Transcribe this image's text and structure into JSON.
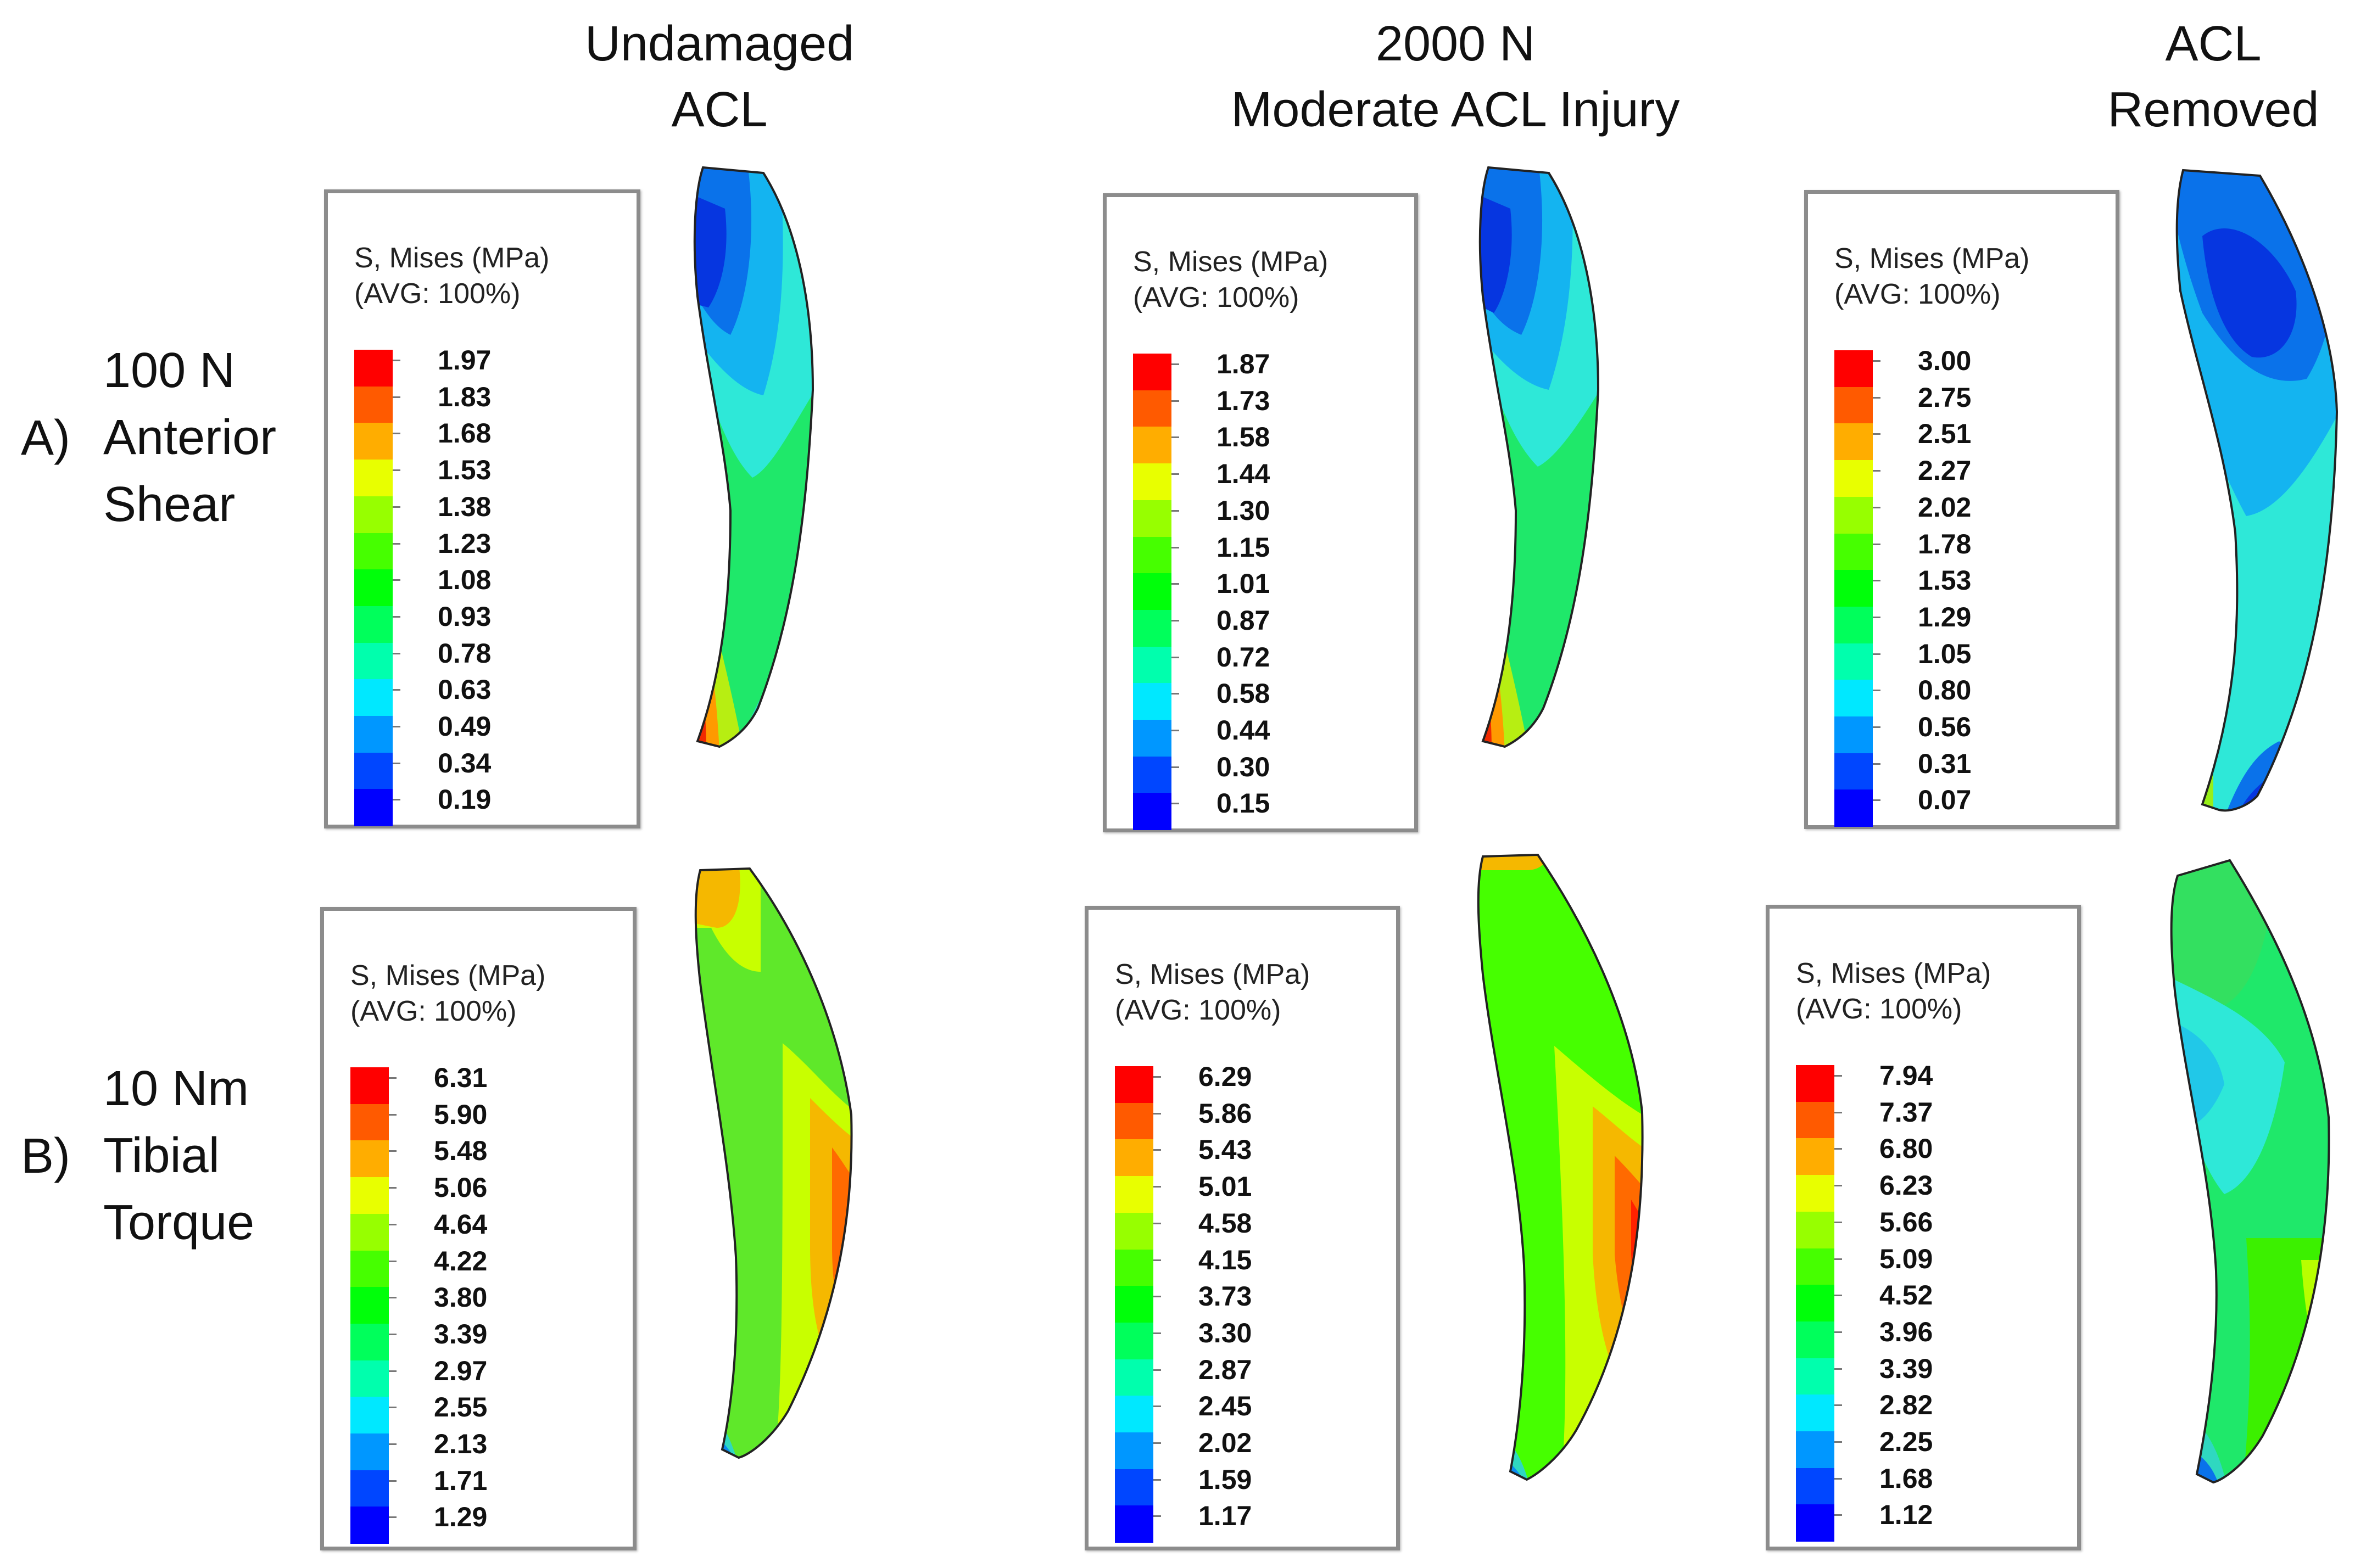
{
  "columns": [
    {
      "line1": "Undamaged",
      "line2": "ACL"
    },
    {
      "line1": "2000 N",
      "line2": "Moderate ACL Injury"
    },
    {
      "line1": "ACL",
      "line2": "Removed"
    }
  ],
  "rows": [
    {
      "letter": "A)",
      "lines": [
        "100 N",
        "Anterior",
        "Shear"
      ]
    },
    {
      "letter": "B)",
      "lines": [
        "10 Nm",
        "Tibial",
        "Torque"
      ]
    }
  ],
  "legend_title_1": "S, Mises (MPa)",
  "legend_title_2": "(AVG: 100%)",
  "legend_colors": [
    "#ff0000",
    "#ff5a00",
    "#ffad00",
    "#e8ff00",
    "#97ff00",
    "#46ff00",
    "#00ff0a",
    "#00ff5b",
    "#00ffad",
    "#00e8ff",
    "#0097ff",
    "#0046ff",
    "#0000ff"
  ],
  "legends": {
    "a1": [
      "1.97",
      "1.83",
      "1.68",
      "1.53",
      "1.38",
      "1.23",
      "1.08",
      "0.93",
      "0.78",
      "0.63",
      "0.49",
      "0.34",
      "0.19"
    ],
    "a2": [
      "1.87",
      "1.73",
      "1.58",
      "1.44",
      "1.30",
      "1.15",
      "1.01",
      "0.87",
      "0.72",
      "0.58",
      "0.44",
      "0.30",
      "0.15"
    ],
    "a3": [
      "3.00",
      "2.75",
      "2.51",
      "2.27",
      "2.02",
      "1.78",
      "1.53",
      "1.29",
      "1.05",
      "0.80",
      "0.56",
      "0.31",
      "0.07"
    ],
    "b1": [
      "6.31",
      "5.90",
      "5.48",
      "5.06",
      "4.64",
      "4.22",
      "3.80",
      "3.39",
      "2.97",
      "2.55",
      "2.13",
      "1.71",
      "1.29"
    ],
    "b2": [
      "6.29",
      "5.86",
      "5.43",
      "5.01",
      "4.58",
      "4.15",
      "3.73",
      "3.30",
      "2.87",
      "2.45",
      "2.02",
      "1.59",
      "1.17"
    ],
    "b3": [
      "7.94",
      "7.37",
      "6.80",
      "6.23",
      "5.66",
      "5.09",
      "4.52",
      "3.96",
      "3.39",
      "2.82",
      "2.25",
      "1.68",
      "1.12"
    ]
  }
}
